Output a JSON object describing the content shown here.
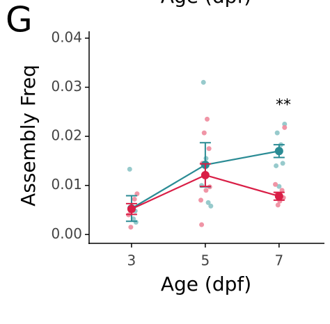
{
  "chart_data": {
    "type": "line-errorbar",
    "top_label": "Age (dpf)",
    "panel_label": "G",
    "ylabel": "Assembly Freq",
    "xlabel": "Age (dpf)",
    "annotation": "**",
    "xlim": [
      1.85,
      8.23
    ],
    "ylim": [
      -0.0018,
      0.0414
    ],
    "xticks": [
      3,
      5,
      7
    ],
    "yticks": [
      {
        "value": 0,
        "label": "0.00"
      },
      0.01,
      0.02,
      0.03,
      0.04
    ],
    "series": [
      {
        "color": "#2a8b94",
        "point_color": "#8cc4c6",
        "x": [
          3,
          5,
          7
        ],
        "values": [
          0.0053,
          0.0142,
          0.017
        ],
        "errors": [
          0.0026,
          0.0045,
          0.0013
        ],
        "points_x": [
          2.95,
          3.1,
          3.05,
          3.12,
          4.95,
          5.02,
          4.9,
          5.08,
          5.15,
          7.15,
          6.95,
          7.05,
          7.1,
          6.92,
          7.0
        ],
        "points_y": [
          0.0133,
          0.0048,
          0.0032,
          0.0025,
          0.031,
          0.0155,
          0.01,
          0.0065,
          0.0058,
          0.0225,
          0.0207,
          0.0183,
          0.0145,
          0.014,
          0.0098
        ]
      },
      {
        "color": "#d91e46",
        "point_color": "#ee8a9c",
        "x": [
          3,
          5,
          7
        ],
        "values": [
          0.0052,
          0.0121,
          0.0078
        ],
        "errors": [
          0.0011,
          0.0023,
          0.0008
        ],
        "points_x": [
          3.15,
          3.08,
          2.92,
          2.98,
          5.05,
          4.97,
          5.1,
          4.92,
          5.12,
          5.02,
          4.88,
          4.9,
          7.15,
          6.9,
          7.08,
          6.95,
          7.12,
          7.02,
          6.97
        ],
        "points_y": [
          0.0083,
          0.0072,
          0.004,
          0.0015,
          0.0235,
          0.0207,
          0.0175,
          0.0145,
          0.0097,
          0.009,
          0.007,
          0.002,
          0.0218,
          0.0102,
          0.009,
          0.0082,
          0.0075,
          0.0068,
          0.006
        ]
      }
    ]
  }
}
